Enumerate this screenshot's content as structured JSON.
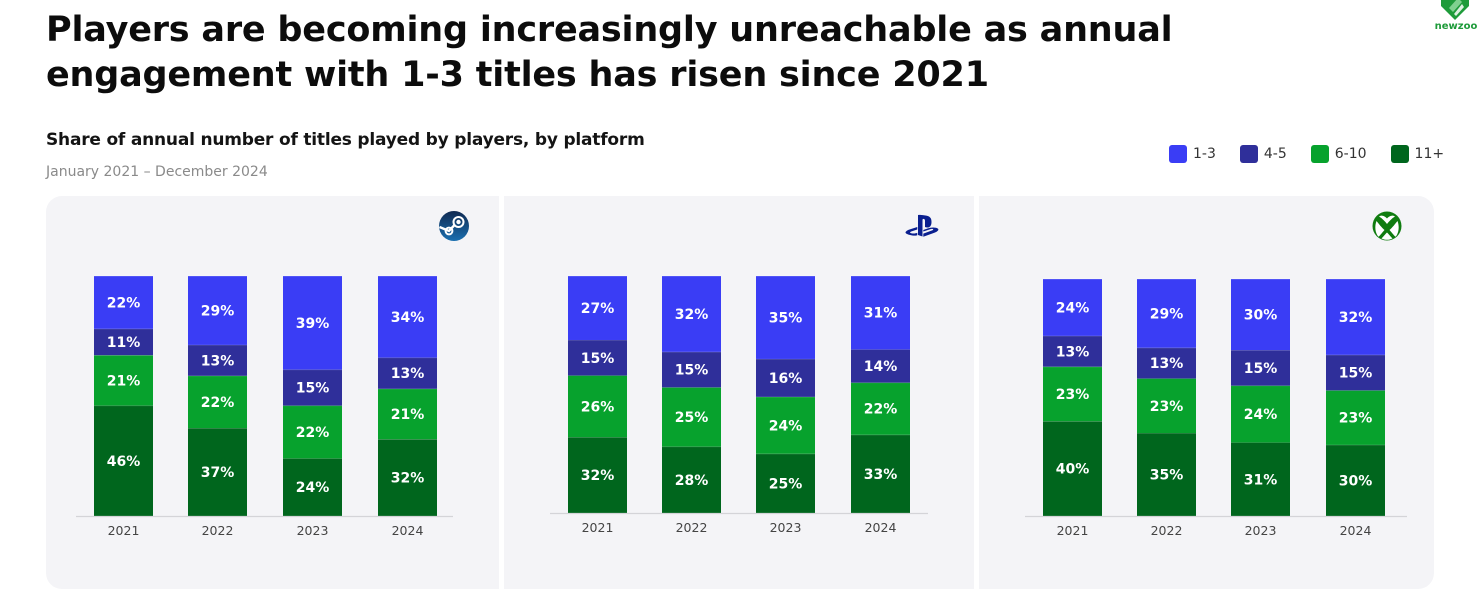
{
  "header": {
    "title_line1": "Players are becoming increasingly unreachable as annual",
    "title_line2": "engagement with 1-3 titles has risen since 2021",
    "subtitle": "Share of annual number of titles played by players, by platform",
    "date_range": "January 2021 – December 2024",
    "brand": "newzoo"
  },
  "colors": {
    "1-3": "#3a3df5",
    "4-5": "#2f2f9a",
    "6-10": "#07a22d",
    "11+": "#00661d",
    "panel_bg": "#f4f4f7",
    "brand_green": "#1e9b3a"
  },
  "legend": [
    {
      "label": "1-3",
      "color": "#3a3df5"
    },
    {
      "label": "4-5",
      "color": "#2f2f9a"
    },
    {
      "label": "6-10",
      "color": "#07a22d"
    },
    {
      "label": "11+",
      "color": "#00661d"
    }
  ],
  "chart_data": [
    {
      "type": "bar",
      "stacked": true,
      "platform": "Steam",
      "icon": "steam-icon",
      "title": "Share of annual number of titles played by players, by platform",
      "categories": [
        "2021",
        "2022",
        "2023",
        "2024"
      ],
      "ylim": [
        0,
        100
      ],
      "unit": "%",
      "grid": false,
      "legend_position": "top-right",
      "series": [
        {
          "name": "11+",
          "values": [
            46,
            37,
            24,
            32
          ]
        },
        {
          "name": "6-10",
          "values": [
            21,
            22,
            22,
            21
          ]
        },
        {
          "name": "4-5",
          "values": [
            11,
            13,
            15,
            13
          ]
        },
        {
          "name": "1-3",
          "values": [
            22,
            29,
            39,
            34
          ]
        }
      ]
    },
    {
      "type": "bar",
      "stacked": true,
      "platform": "PlayStation",
      "icon": "playstation-icon",
      "title": "Share of annual number of titles played by players, by platform",
      "categories": [
        "2021",
        "2022",
        "2023",
        "2024"
      ],
      "ylim": [
        0,
        100
      ],
      "unit": "%",
      "grid": false,
      "legend_position": "top-right",
      "series": [
        {
          "name": "11+",
          "values": [
            32,
            28,
            25,
            33
          ]
        },
        {
          "name": "6-10",
          "values": [
            26,
            25,
            24,
            22
          ]
        },
        {
          "name": "4-5",
          "values": [
            15,
            15,
            16,
            14
          ]
        },
        {
          "name": "1-3",
          "values": [
            27,
            32,
            35,
            31
          ]
        }
      ]
    },
    {
      "type": "bar",
      "stacked": true,
      "platform": "Xbox",
      "icon": "xbox-icon",
      "title": "Share of annual number of titles played by players, by platform",
      "categories": [
        "2021",
        "2022",
        "2023",
        "2024"
      ],
      "ylim": [
        0,
        100
      ],
      "unit": "%",
      "grid": false,
      "legend_position": "top-right",
      "series": [
        {
          "name": "11+",
          "values": [
            40,
            35,
            31,
            30
          ]
        },
        {
          "name": "6-10",
          "values": [
            23,
            23,
            24,
            23
          ]
        },
        {
          "name": "4-5",
          "values": [
            13,
            13,
            15,
            15
          ]
        },
        {
          "name": "1-3",
          "values": [
            24,
            29,
            30,
            32
          ]
        }
      ]
    }
  ]
}
